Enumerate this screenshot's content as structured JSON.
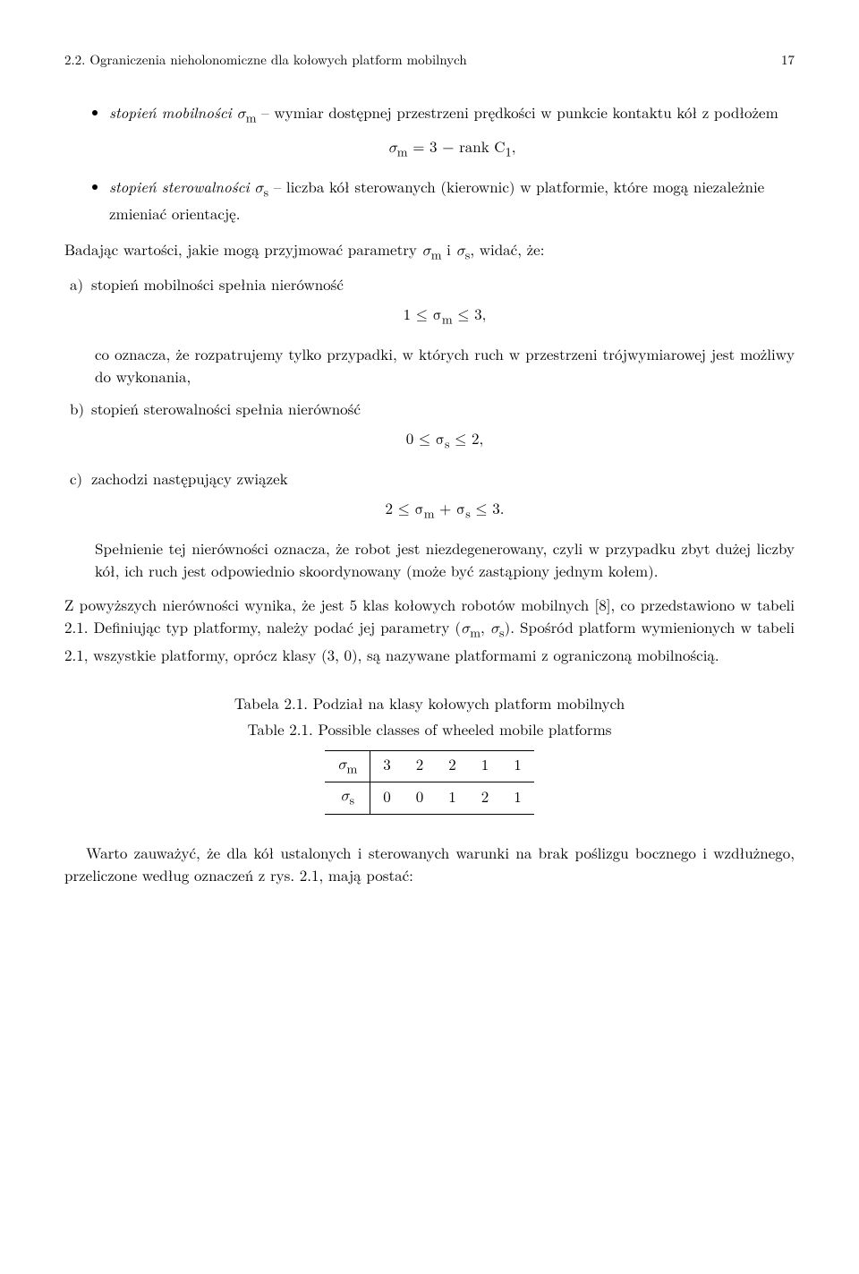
{
  "header": {
    "section_label": "2.2. Ograniczenia nieholonomiczne dla kołowych platform mobilnych",
    "page_number": "17"
  },
  "bullet1": {
    "prefix": "stopień mobilności",
    "sym": " σ",
    "sub": "m",
    "rest": " – wymiar dostępnej przestrzeni prędkości w punkcie kontaktu kół z podłożem"
  },
  "eq1": {
    "text": "σ",
    "sub": "m",
    "rhs": " = 3 − rank C",
    "one": "1",
    "comma": ","
  },
  "bullet2": {
    "prefix": "stopień sterowalności",
    "sym": " σ",
    "sub": "s",
    "rest": " – liczba kół sterowanych (kierownic) w platformie, które mogą niezależnie zmieniać orientację."
  },
  "intro_para": {
    "p1": "Badając wartości, jakie mogą przyjmować parametry ",
    "sm": "σ",
    "sm_sub": "m",
    "p2": " i ",
    "ss": "σ",
    "ss_sub": "s",
    "p3": ", widać, że:"
  },
  "item_a": {
    "label": "a)",
    "text": "stopień mobilności spełnia nierówność",
    "eq_l": "1 ≤ σ",
    "eq_sub": "m",
    "eq_r": " ≤ 3,",
    "after": "co oznacza, że rozpatrujemy tylko przypadki, w których ruch w przestrzeni trójwymiarowej jest możliwy do wykonania,"
  },
  "item_b": {
    "label": "b)",
    "text": "stopień sterowalności spełnia nierówność",
    "eq_l": "0 ≤ σ",
    "eq_sub": "s",
    "eq_r": " ≤ 2,"
  },
  "item_c": {
    "label": "c)",
    "text": "zachodzi następujący związek",
    "eq_l": "2 ≤ σ",
    "eq_sub1": "m",
    "eq_plus": " + σ",
    "eq_sub2": "s",
    "eq_r": " ≤ 3.",
    "after": "Spełnienie tej nierówności oznacza, że robot jest niezdegenerowany, czyli w przypadku zbyt dużej liczby kół, ich ruch jest odpowiednio skoordynowany (może być zastąpiony jednym kołem)."
  },
  "after_list": {
    "p1": "Z powyższych nierówności wynika, że jest 5 klas kołowych robotów mobilnych [8], co przedstawiono w tabeli 2.1. Definiując typ platformy, należy podać jej parametry (",
    "sm": "σ",
    "sm_sub": "m",
    "p2": ", ",
    "ss": "σ",
    "ss_sub": "s",
    "p3": "). Spośród platform wymienionych w tabeli 2.1, wszystkie platformy, oprócz klasy (3, 0), są nazywane platformami z ograniczoną mobilnością."
  },
  "table": {
    "caption_pl": "Tabela 2.1. Podział na klasy kołowych platform mobilnych",
    "caption_en": "Table 2.1. Possible classes of wheeled mobile platforms",
    "row1_head": "σ",
    "row1_sub": "m",
    "row2_head": "σ",
    "row2_sub": "s",
    "row1": [
      "3",
      "2",
      "2",
      "1",
      "1"
    ],
    "row2": [
      "0",
      "0",
      "1",
      "2",
      "1"
    ]
  },
  "final_para": "Warto zauważyć, że dla kół ustalonych i sterowanych warunki na brak poślizgu bocznego i wzdłużnego, przeliczone według oznaczeń z rys. 2.1, mają postać:"
}
